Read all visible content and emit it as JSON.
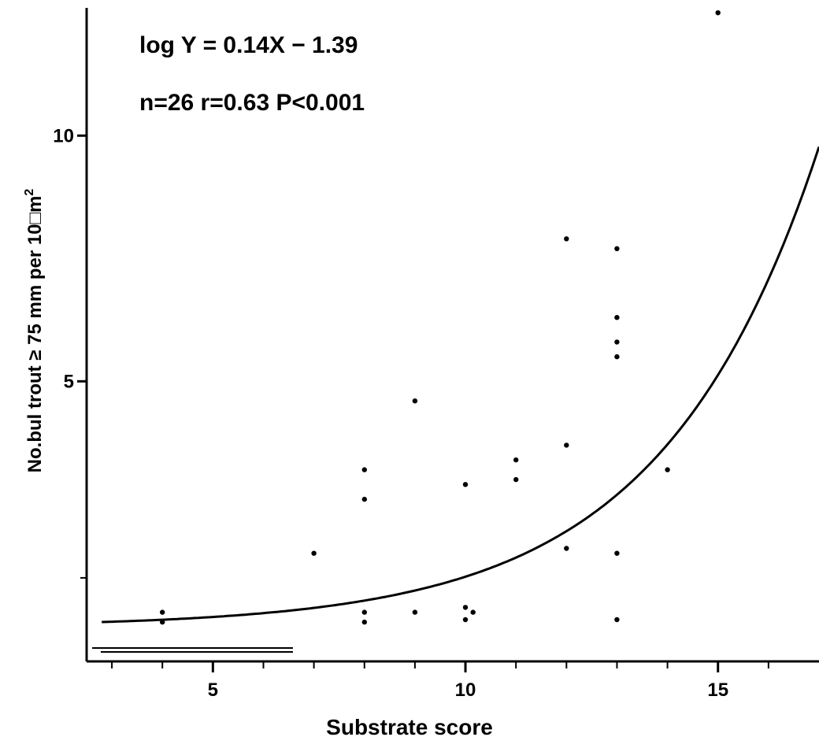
{
  "chart_data": {
    "type": "scatter",
    "title": "",
    "xlabel": "Substrate score",
    "ylabel": "No. bull trout ≥ 75 mm per 100 m²",
    "ylabel_main": "No.bul trout ≥ 75 mm per 10",
    "ylabel_box": "□",
    "ylabel_unit": "m",
    "ylabel_exp": "2",
    "annotations": {
      "equation": "log Y = 0.14X − 1.39",
      "stats": "n=26  r=0.63  P<0.001"
    },
    "xlim": [
      2.5,
      17
    ],
    "ylim": [
      -0.7,
      12.6
    ],
    "x_major_ticks": [
      5,
      10,
      15
    ],
    "x_minor_ticks": [
      3,
      4,
      6,
      7,
      8,
      9,
      11,
      12,
      13,
      14,
      16
    ],
    "y_major_ticks": [
      5,
      10
    ],
    "y_minor_ticks": [
      1
    ],
    "grid": false,
    "fit": {
      "slope": 0.14,
      "intercept": -1.39,
      "x_from": 2.8,
      "x_to": 17
    },
    "points": [
      {
        "x": 4,
        "y": 0.3
      },
      {
        "x": 4,
        "y": 0.1
      },
      {
        "x": 7,
        "y": 1.5
      },
      {
        "x": 8,
        "y": 3.2
      },
      {
        "x": 8,
        "y": 2.6
      },
      {
        "x": 8,
        "y": 0.3
      },
      {
        "x": 8,
        "y": 0.1
      },
      {
        "x": 9,
        "y": 4.6
      },
      {
        "x": 9,
        "y": 0.3
      },
      {
        "x": 10,
        "y": 2.9
      },
      {
        "x": 10,
        "y": 0.4
      },
      {
        "x": 10.15,
        "y": 0.3
      },
      {
        "x": 10,
        "y": 0.15
      },
      {
        "x": 11,
        "y": 3.4
      },
      {
        "x": 11,
        "y": 3.0
      },
      {
        "x": 12,
        "y": 7.9
      },
      {
        "x": 12,
        "y": 3.7
      },
      {
        "x": 12,
        "y": 1.6
      },
      {
        "x": 13,
        "y": 7.7
      },
      {
        "x": 13,
        "y": 6.3
      },
      {
        "x": 13,
        "y": 5.8
      },
      {
        "x": 13,
        "y": 5.5
      },
      {
        "x": 13,
        "y": 1.5
      },
      {
        "x": 13,
        "y": 0.15
      },
      {
        "x": 14,
        "y": 3.2
      },
      {
        "x": 15,
        "y": 12.5
      }
    ]
  }
}
